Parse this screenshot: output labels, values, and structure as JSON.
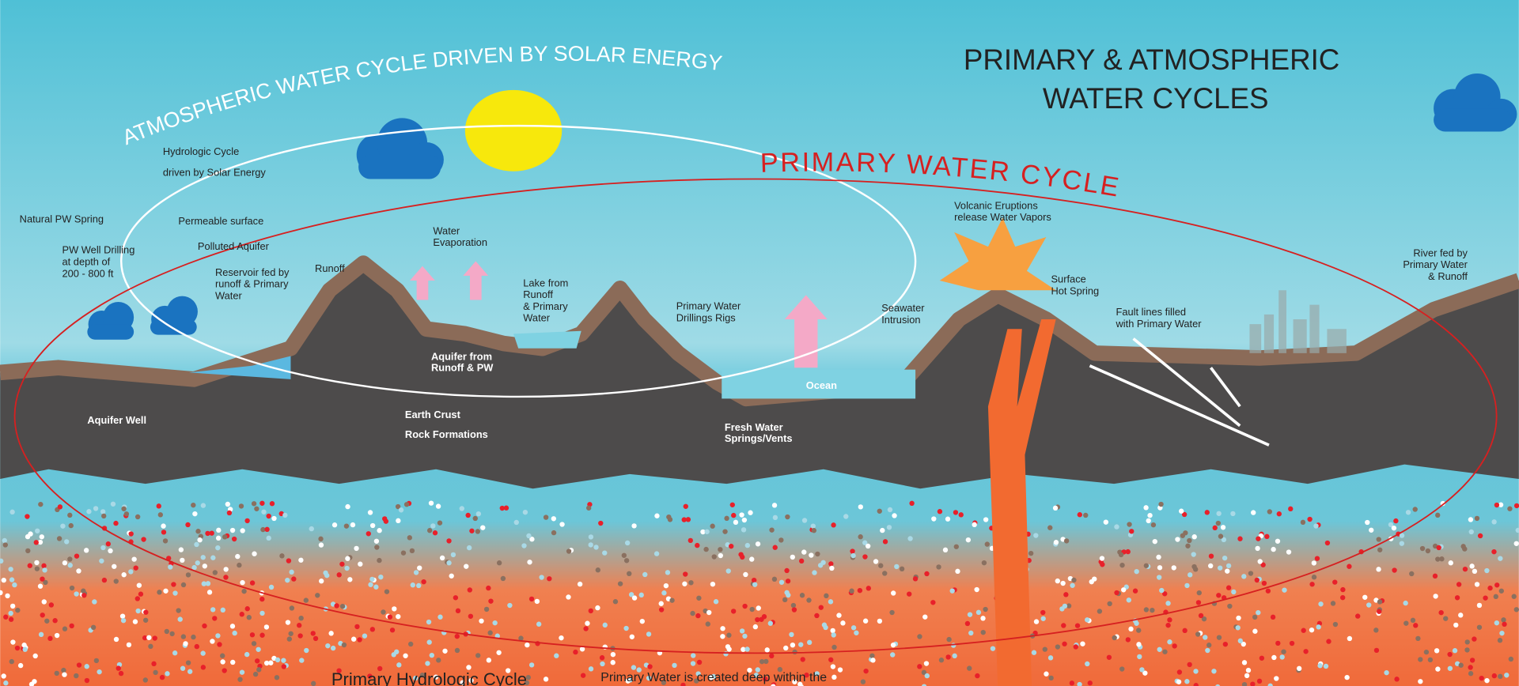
{
  "title": {
    "lines": [
      "PRIMARY  & ATMOSPHERIC",
      "WATER CYCLES"
    ]
  },
  "atmospheric_arc": "ATMOSPHERIC WATER CYCLE DRIVEN BY SOLAR ENERGY",
  "primary_arc": "PRIMARY WATER CYCLE",
  "labels": [
    {
      "lines": [
        "Natural PW Spring"
      ]
    },
    {
      "lines": [
        "PW Well Drilling",
        "at depth of",
        "200 - 800 ft"
      ]
    },
    {
      "lines": [
        "Permeable surface"
      ]
    },
    {
      "lines": [
        "Polluted Aquifer"
      ]
    },
    {
      "lines": [
        "Reservoir fed by",
        "runoff & Primary",
        "Water"
      ]
    },
    {
      "lines": [
        "Runoff"
      ]
    },
    {
      "lines": [
        "Hydrologic Cycle",
        "driven by Solar Energy"
      ]
    },
    {
      "lines": [
        "Water",
        "Evaporation"
      ]
    },
    {
      "lines": [
        "Lake from",
        "Runoff",
        "& Primary",
        "Water"
      ]
    },
    {
      "lines": [
        "Aquifer from",
        "Runoff & PW"
      ]
    },
    {
      "lines": [
        "Primary Water",
        "Drillings Rigs"
      ]
    },
    {
      "lines": [
        "Earth Crust",
        "Rock Formations"
      ]
    },
    {
      "lines": [
        "Ocean"
      ]
    },
    {
      "lines": [
        "Fresh Water",
        "Springs/Vents"
      ]
    },
    {
      "lines": [
        "Seawater",
        "Intrusion"
      ]
    },
    {
      "lines": [
        "Volcanic Eruptions",
        "release Water Vapors"
      ]
    },
    {
      "lines": [
        "Surface",
        "Hot Spring"
      ]
    },
    {
      "lines": [
        "Fault lines filled",
        "with Primary Water"
      ]
    },
    {
      "lines": [
        "River fed by",
        "Primary Water",
        "& Runoff"
      ]
    },
    {
      "lines": [
        "Aquifer Well"
      ]
    }
  ],
  "bottom": {
    "heading": "Primary Hydrologic Cycle",
    "text": "Primary Water is created deep within the"
  }
}
